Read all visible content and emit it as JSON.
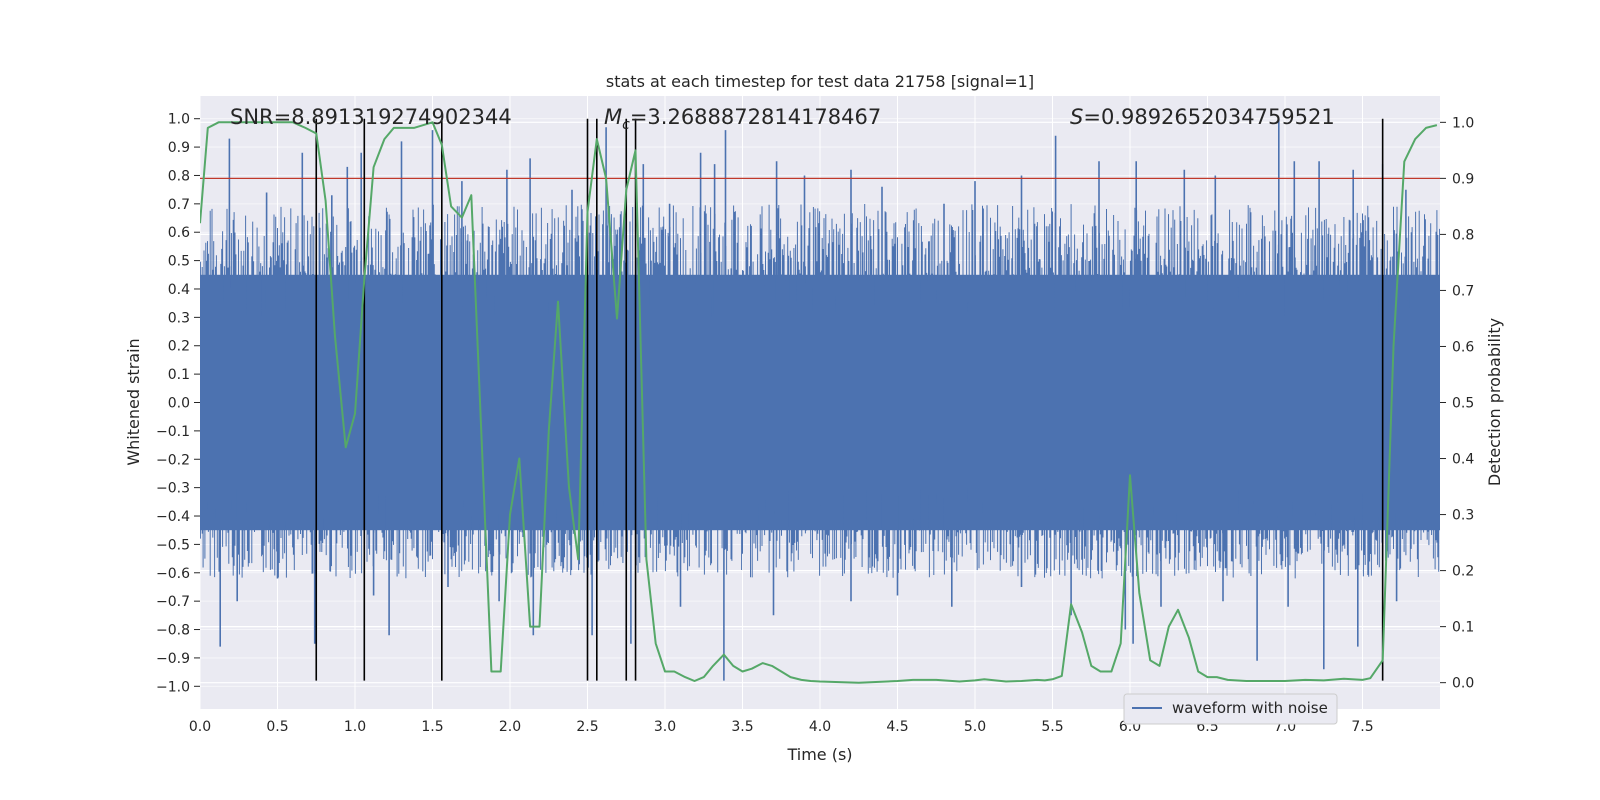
{
  "chart_data": {
    "type": "line",
    "title": "stats at each timestep for test data 21758 [signal=1]",
    "xlabel": "Time (s)",
    "ylabel": "Whitened strain",
    "y2label": "Detection probability",
    "xlim": [
      0.0,
      8.0
    ],
    "ylim": [
      -1.08,
      1.08
    ],
    "y2lim": [
      -0.047,
      1.047
    ],
    "xticks": [
      0.0,
      0.5,
      1.0,
      1.5,
      2.0,
      2.5,
      3.0,
      3.5,
      4.0,
      4.5,
      5.0,
      5.5,
      6.0,
      6.5,
      7.0,
      7.5
    ],
    "xtick_labels": [
      "0.0",
      "0.5",
      "1.0",
      "1.5",
      "2.0",
      "2.5",
      "3.0",
      "3.5",
      "4.0",
      "4.5",
      "5.0",
      "5.5",
      "6.0",
      "6.5",
      "7.0",
      "7.5"
    ],
    "yticks": [
      1.0,
      0.9,
      0.8,
      0.7,
      0.6,
      0.5,
      0.4,
      0.3,
      0.2,
      0.1,
      0.0,
      -0.1,
      -0.2,
      -0.3,
      -0.4,
      -0.5,
      -0.6,
      -0.7,
      -0.8,
      -0.9,
      -1.0
    ],
    "ytick_labels": [
      "1.0",
      "0.9",
      "0.8",
      "0.7",
      "0.6",
      "0.5",
      "0.4",
      "0.3",
      "0.2",
      "0.1",
      "0.0",
      "−0.1",
      "−0.2",
      "−0.3",
      "−0.4",
      "−0.5",
      "−0.6",
      "−0.7",
      "−0.8",
      "−0.9",
      "−1.0"
    ],
    "y2ticks": [
      1.0,
      0.9,
      0.8,
      0.7,
      0.6,
      0.5,
      0.4,
      0.3,
      0.2,
      0.1,
      0.0
    ],
    "y2tick_labels": [
      "1.0",
      "0.9",
      "0.8",
      "0.7",
      "0.6",
      "0.5",
      "0.4",
      "0.3",
      "0.2",
      "0.1",
      "0.0"
    ],
    "annotations": {
      "snr": "SNR=8.891319274902344",
      "mc_symbol": "M",
      "mc_sub": "c",
      "mc_value": "=3.2688872814178467",
      "s_symbol": "S",
      "s_value": "=0.9892652034759521"
    },
    "legend": {
      "label": "waveform with noise",
      "location": "lower-right"
    },
    "threshold": {
      "value": 0.9,
      "axis": "y2",
      "color": "#c0392b"
    },
    "vlines": {
      "x": [
        0.75,
        1.06,
        1.56,
        2.5,
        2.56,
        2.75,
        2.81,
        7.63
      ],
      "from": -0.98,
      "to": 1.0
    },
    "waveform": {
      "name": "waveform with noise",
      "color": "#4c72b0",
      "band_upper": 0.45,
      "band_lower": -0.45,
      "peaks_upper": [
        [
          0.19,
          0.93
        ],
        [
          0.43,
          0.74
        ],
        [
          0.66,
          0.88
        ],
        [
          0.85,
          0.73
        ],
        [
          0.95,
          0.83
        ],
        [
          1.04,
          0.88
        ],
        [
          1.3,
          0.92
        ],
        [
          1.5,
          0.96
        ],
        [
          1.69,
          0.78
        ],
        [
          1.98,
          0.82
        ],
        [
          2.13,
          0.86
        ],
        [
          2.4,
          0.75
        ],
        [
          2.62,
          0.97
        ],
        [
          2.86,
          0.84
        ],
        [
          3.03,
          0.7
        ],
        [
          3.23,
          0.88
        ],
        [
          3.32,
          0.84
        ],
        [
          3.39,
          0.96
        ],
        [
          3.72,
          0.85
        ],
        [
          3.9,
          0.8
        ],
        [
          4.2,
          0.82
        ],
        [
          4.4,
          0.76
        ],
        [
          4.8,
          0.7
        ],
        [
          5.0,
          0.78
        ],
        [
          5.3,
          0.8
        ],
        [
          5.52,
          0.94
        ],
        [
          5.8,
          0.85
        ],
        [
          6.04,
          0.85
        ],
        [
          6.35,
          0.82
        ],
        [
          6.55,
          0.8
        ],
        [
          6.96,
          1.0
        ],
        [
          7.06,
          0.85
        ],
        [
          7.22,
          0.85
        ],
        [
          7.44,
          0.82
        ],
        [
          7.63,
          0.84
        ],
        [
          7.78,
          0.75
        ]
      ],
      "peaks_lower": [
        [
          0.13,
          -0.86
        ],
        [
          0.24,
          -0.7
        ],
        [
          0.5,
          -0.62
        ],
        [
          0.74,
          -0.85
        ],
        [
          1.12,
          -0.68
        ],
        [
          1.22,
          -0.82
        ],
        [
          1.6,
          -0.65
        ],
        [
          1.93,
          -0.7
        ],
        [
          2.15,
          -0.82
        ],
        [
          2.53,
          -0.82
        ],
        [
          2.78,
          -0.85
        ],
        [
          3.1,
          -0.72
        ],
        [
          3.38,
          -0.98
        ],
        [
          3.7,
          -0.75
        ],
        [
          4.2,
          -0.7
        ],
        [
          4.5,
          -0.68
        ],
        [
          4.85,
          -0.72
        ],
        [
          5.3,
          -0.65
        ],
        [
          5.62,
          -0.75
        ],
        [
          5.97,
          -0.8
        ],
        [
          6.02,
          -0.85
        ],
        [
          6.2,
          -0.72
        ],
        [
          6.6,
          -0.7
        ],
        [
          6.82,
          -0.91
        ],
        [
          7.02,
          -0.72
        ],
        [
          7.25,
          -0.94
        ],
        [
          7.47,
          -0.86
        ],
        [
          7.72,
          -0.7
        ]
      ]
    },
    "detection_probability": {
      "name": "detection probability",
      "axis": "y2",
      "color": "#55a868",
      "x": [
        0.0,
        0.05,
        0.12,
        0.2,
        0.6,
        0.68,
        0.75,
        0.81,
        0.87,
        0.94,
        1.0,
        1.06,
        1.12,
        1.19,
        1.25,
        1.31,
        1.38,
        1.5,
        1.56,
        1.62,
        1.69,
        1.75,
        1.88,
        1.94,
        2.0,
        2.06,
        2.13,
        2.19,
        2.25,
        2.31,
        2.38,
        2.44,
        2.5,
        2.56,
        2.62,
        2.69,
        2.75,
        2.81,
        2.88,
        2.94,
        3.0,
        3.06,
        3.13,
        3.19,
        3.25,
        3.31,
        3.38,
        3.44,
        3.5,
        3.56,
        3.63,
        3.69,
        3.75,
        3.81,
        3.88,
        3.94,
        4.0,
        4.25,
        4.5,
        4.6,
        4.75,
        4.9,
        5.0,
        5.06,
        5.2,
        5.3,
        5.4,
        5.45,
        5.5,
        5.56,
        5.62,
        5.69,
        5.75,
        5.81,
        5.88,
        5.94,
        6.0,
        6.06,
        6.13,
        6.19,
        6.25,
        6.31,
        6.38,
        6.44,
        6.5,
        6.56,
        6.63,
        6.75,
        7.0,
        7.13,
        7.25,
        7.38,
        7.5,
        7.55,
        7.63,
        7.7,
        7.77,
        7.84,
        7.91,
        7.98
      ],
      "y": [
        0.82,
        0.99,
        1.0,
        1.0,
        1.0,
        0.99,
        0.98,
        0.86,
        0.62,
        0.42,
        0.48,
        0.72,
        0.92,
        0.97,
        0.99,
        0.99,
        0.99,
        1.0,
        0.96,
        0.85,
        0.83,
        0.87,
        0.02,
        0.02,
        0.3,
        0.4,
        0.1,
        0.1,
        0.45,
        0.68,
        0.35,
        0.22,
        0.84,
        0.97,
        0.9,
        0.65,
        0.88,
        0.95,
        0.22,
        0.07,
        0.02,
        0.02,
        0.01,
        0.003,
        0.01,
        0.03,
        0.05,
        0.03,
        0.02,
        0.025,
        0.035,
        0.03,
        0.02,
        0.01,
        0.005,
        0.003,
        0.002,
        0.0,
        0.003,
        0.005,
        0.005,
        0.002,
        0.004,
        0.006,
        0.002,
        0.003,
        0.005,
        0.004,
        0.006,
        0.012,
        0.14,
        0.09,
        0.03,
        0.02,
        0.02,
        0.07,
        0.37,
        0.16,
        0.04,
        0.03,
        0.1,
        0.13,
        0.08,
        0.02,
        0.01,
        0.01,
        0.005,
        0.003,
        0.003,
        0.005,
        0.004,
        0.007,
        0.005,
        0.008,
        0.04,
        0.6,
        0.93,
        0.97,
        0.99,
        0.995
      ]
    }
  }
}
